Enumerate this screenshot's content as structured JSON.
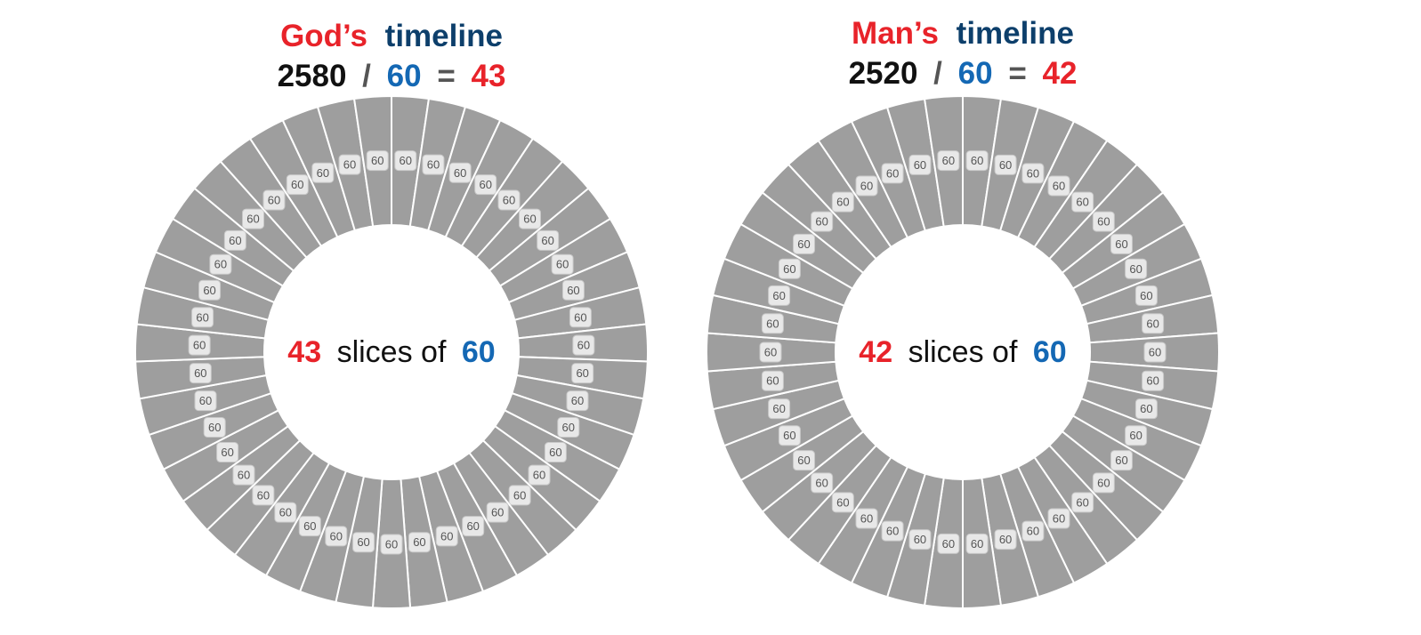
{
  "colors": {
    "red": "#e8232a",
    "navy": "#0d3f6b",
    "blue": "#1468b4",
    "black": "#111111",
    "gray_op": "#555555",
    "slice_fill": "#9e9e9e",
    "slice_stroke": "#ffffff"
  },
  "chart_data": [
    {
      "type": "pie",
      "donut": true,
      "title": {
        "part1": "God’s",
        "part2": "timeline"
      },
      "equation": {
        "total": "2580",
        "slash": "/",
        "divisor": "60",
        "equals": "=",
        "result": "43"
      },
      "center": {
        "count": "43",
        "text": "slices of",
        "size": "60"
      },
      "slice_count": 43,
      "slice_value": 60
    },
    {
      "type": "pie",
      "donut": true,
      "title": {
        "part1": "Man’s",
        "part2": "timeline"
      },
      "equation": {
        "total": "2520",
        "slash": "/",
        "divisor": "60",
        "equals": "=",
        "result": "42"
      },
      "center": {
        "count": "42",
        "text": "slices of",
        "size": "60"
      },
      "slice_count": 42,
      "slice_value": 60
    }
  ]
}
